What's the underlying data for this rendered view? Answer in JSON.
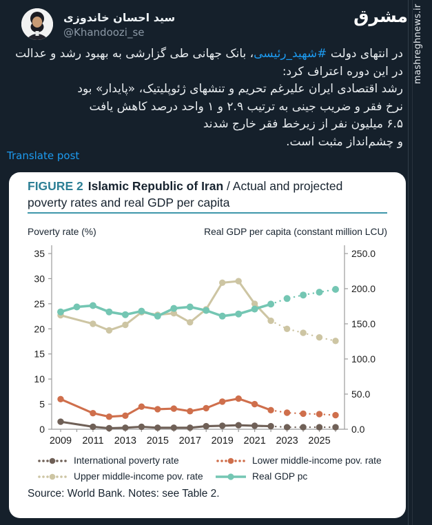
{
  "post": {
    "author_name": "سید احسان خاندوزی",
    "author_handle": "@Khandoozi_se",
    "translate_label": "Translate post",
    "tweet": {
      "p1_pre": "در انتهای دولت ",
      "p1_hashtag": "#شهید_رئیسی",
      "p1_post": "، بانک جهانی طی گزارشی به بهبود رشد و عدالت در این دوره اعتراف کرد:",
      "p2": "رشد اقتصادی ایران علیرغم تحریم و تنشهای ژئوپلیتیک، «پایدار» بود",
      "p3": "نرخ فقر و ضریب جینی به ترتیب ۲.۹ و ۱ واحد درصد کاهش یافت",
      "p4": "۶.۵ میلیون نفر از زیرخط فقر خارج شدند",
      "p5": "و چشم‌انداز مثبت است."
    }
  },
  "watermark": {
    "logo": "مشرق",
    "site": "mashreghnews.ir"
  },
  "figure": {
    "label": "FIGURE 2",
    "title_bold": "Islamic Republic of Iran",
    "title_tail": " / Actual and projected",
    "title_line2": "poverty rates and real GDP per capita",
    "source": "Source: World Bank. Notes: see Table 2."
  },
  "colors": {
    "background": "#15202b",
    "link_blue": "#1d9bf0",
    "figure_teal": "#2c7f95",
    "rule_teal": "#3d96aa",
    "series_international": "#6f6057",
    "series_lower": "#cf6f4c",
    "series_upper": "#cdc5a3",
    "series_gdp": "#74c6b3"
  },
  "chart_data": {
    "type": "line",
    "title": "Islamic Republic of Iran / Actual and projected poverty rates and real GDP per capita",
    "x": [
      2009,
      2010,
      2011,
      2012,
      2013,
      2014,
      2015,
      2016,
      2017,
      2018,
      2019,
      2020,
      2021,
      2022,
      2023,
      2024,
      2025,
      2026
    ],
    "x_labels": [
      2009,
      2011,
      2013,
      2015,
      2017,
      2019,
      2021,
      2023,
      2025
    ],
    "projection_from": 2022,
    "grid": false,
    "legend_position": "bottom",
    "left_axis": {
      "title": "Poverty rate (%)",
      "range": [
        0,
        35
      ],
      "ticks": [
        0,
        5,
        10,
        15,
        20,
        25,
        30,
        35
      ]
    },
    "right_axis": {
      "title": "Real GDP per capita (constant million LCU)",
      "range": [
        0,
        250
      ],
      "ticks": [
        0,
        50,
        100,
        150,
        200,
        250
      ]
    },
    "series": [
      {
        "name": "International poverty rate",
        "axis": "left",
        "legend": "dotted",
        "color": "#6f6057",
        "values": [
          1.5,
          null,
          0.5,
          0.2,
          0.3,
          0.5,
          0.3,
          0.3,
          0.3,
          0.6,
          0.7,
          0.8,
          0.7,
          0.6,
          0.4,
          0.4,
          0.4,
          0.4
        ]
      },
      {
        "name": "Lower middle-income pov. rate",
        "axis": "left",
        "legend": "dotted",
        "color": "#cf6f4c",
        "values": [
          6.0,
          null,
          3.2,
          2.5,
          2.7,
          4.5,
          4.0,
          4.1,
          3.6,
          4.2,
          5.5,
          6.1,
          5.0,
          3.8,
          3.3,
          3.1,
          3.0,
          2.8
        ]
      },
      {
        "name": "Upper middle-income pov. rate",
        "axis": "left",
        "legend": "dotted",
        "color": "#cdc5a3",
        "values": [
          22.7,
          null,
          21.0,
          19.7,
          20.8,
          23.3,
          22.8,
          23.1,
          21.3,
          23.9,
          29.2,
          29.5,
          25.0,
          21.6,
          20.0,
          19.2,
          18.3,
          17.6
        ]
      },
      {
        "name": "Real GDP pc",
        "axis": "right",
        "legend": "line",
        "color": "#74c6b3",
        "values": [
          167,
          174,
          176,
          167,
          163,
          168,
          161,
          172,
          174,
          169,
          161,
          164,
          171,
          178,
          186,
          191,
          195,
          199
        ]
      }
    ]
  }
}
